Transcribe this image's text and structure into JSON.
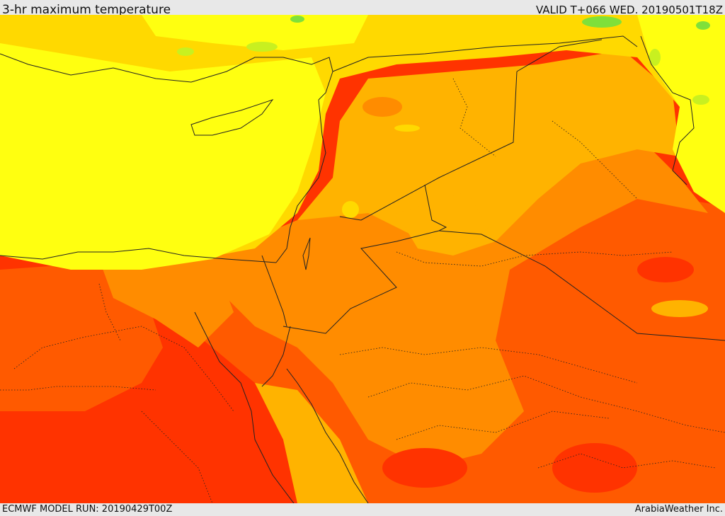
{
  "header": {
    "title": "3-hr maximum temperature",
    "valid": "VALID T+066 WED. 20190501T18Z"
  },
  "footer": {
    "model_run": "ECMWF MODEL RUN: 20190429T00Z",
    "credit": "ArabiaWeather Inc."
  },
  "colors": {
    "band_coolest": "#7fe03a",
    "band_cool": "#c8f020",
    "band_mild": "#ffff10",
    "band_warm": "#ffd900",
    "band_warmer": "#ffb300",
    "band_hot": "#ff8c00",
    "band_hotter": "#ff5a00",
    "band_hottest": "#ff3300",
    "border_line": "#222222"
  }
}
